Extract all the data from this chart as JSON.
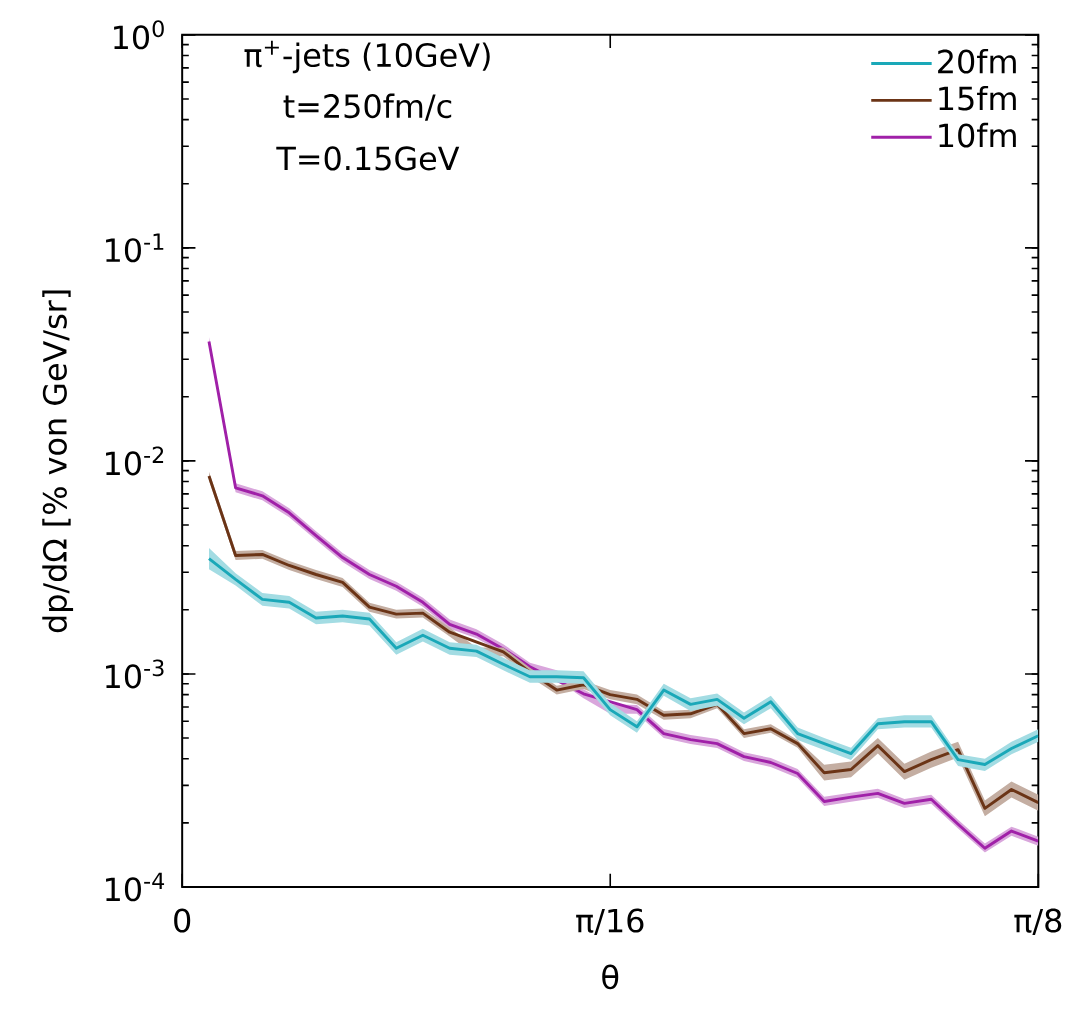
{
  "chart_data": {
    "type": "line",
    "xlabel": "θ",
    "ylabel": "dp/dΩ [% von GeV/sr]",
    "annotations": [
      "π$^{+}$-jets (10GeV)",
      "t=250fm/c",
      "T=0.15GeV"
    ],
    "log": "y",
    "legend": "top right",
    "xlim": [
      0,
      0.3927
    ],
    "xticks": [
      0,
      {
        "value": 0.19635,
        "label": "π/16"
      },
      {
        "value": 0.3927,
        "label": "π/8"
      }
    ],
    "ylim": [
      0.0001,
      1
    ],
    "yticks": [
      {
        "value": 0.0001,
        "label": "10$^{-4}$"
      },
      {
        "value": 0.001,
        "label": "10$^{-3}$"
      },
      {
        "value": 0.01,
        "label": "10$^{-2}$"
      },
      {
        "value": 0.1,
        "label": "10$^{-1}$"
      },
      {
        "value": 1,
        "label": "10$^{0}$"
      }
    ],
    "x": [
      0.0123,
      0.0245,
      0.0368,
      0.0491,
      0.0614,
      0.0736,
      0.0859,
      0.0982,
      0.1104,
      0.1227,
      0.135,
      0.1473,
      0.1595,
      0.1718,
      0.1841,
      0.1963,
      0.2086,
      0.2209,
      0.2332,
      0.2454,
      0.2577,
      0.27,
      0.2823,
      0.2945,
      0.3068,
      0.3191,
      0.3313,
      0.3436,
      0.3559,
      0.3682,
      0.3804,
      0.3927
    ],
    "series": [
      {
        "name": "20fm",
        "color": "#1aa8b8",
        "values": [
          0.00348,
          0.00278,
          0.00224,
          0.00217,
          0.00183,
          0.00187,
          0.00181,
          0.00132,
          0.00152,
          0.00132,
          0.00128,
          0.00111,
          0.00097,
          0.00097,
          0.00096,
          0.00068,
          0.000565,
          0.00084,
          0.00072,
          0.00076,
          0.00062,
          0.00074,
          0.000525,
          0.000471,
          0.000423,
          0.000584,
          0.000597,
          0.000597,
          0.000396,
          0.000376,
          0.000447,
          0.000513
        ],
        "lower": [
          0.0031,
          0.0026,
          0.00209,
          0.00203,
          0.00171,
          0.00175,
          0.00169,
          0.00123,
          0.00142,
          0.00123,
          0.0012,
          0.00104,
          0.00091,
          0.00091,
          0.0009,
          0.00064,
          0.00053,
          0.00079,
          0.00067,
          0.00071,
          0.00058,
          0.00069,
          0.00049,
          0.00044,
          0.000395,
          0.00055,
          0.00056,
          0.00056,
          0.00037,
          0.00035,
          0.00042,
          0.00048
        ],
        "upper": [
          0.0039,
          0.00297,
          0.0024,
          0.00232,
          0.00196,
          0.002,
          0.00194,
          0.00141,
          0.00163,
          0.00141,
          0.00137,
          0.00119,
          0.00104,
          0.00104,
          0.00103,
          0.00073,
          0.0006,
          0.0009,
          0.00077,
          0.00081,
          0.00066,
          0.00079,
          0.00056,
          0.0005,
          0.00045,
          0.00062,
          0.00064,
          0.00064,
          0.00042,
          0.0004,
          0.00048,
          0.00055
        ]
      },
      {
        "name": "15fm",
        "color": "#6b3416",
        "values": [
          0.0085,
          0.0036,
          0.00364,
          0.00323,
          0.00293,
          0.00269,
          0.00206,
          0.00191,
          0.00193,
          0.00157,
          null,
          0.00127,
          0.00102,
          0.00084,
          0.00089,
          0.0008,
          0.00076,
          0.00064,
          0.00065,
          0.00072,
          0.000525,
          0.000553,
          0.000471,
          0.000344,
          0.000356,
          0.000461,
          0.000348,
          0.000396,
          0.000441,
          0.000234,
          0.000287,
          0.000249
        ],
        "lower": [
          0.0081,
          0.00343,
          0.00347,
          0.00308,
          0.00279,
          0.00256,
          0.00196,
          0.00182,
          0.00184,
          0.0015,
          0.00121,
          0.00121,
          0.00097,
          0.0008,
          0.00085,
          0.00076,
          0.00072,
          0.00061,
          0.00062,
          0.00069,
          0.0005,
          0.00053,
          0.00045,
          0.000316,
          0.000327,
          0.000423,
          0.000319,
          0.000363,
          0.000405,
          0.000215,
          0.000263,
          0.000228
        ],
        "upper": [
          0.0089,
          0.00378,
          0.00382,
          0.00339,
          0.00308,
          0.00282,
          0.00216,
          0.002,
          0.00203,
          0.00165,
          0.00133,
          0.00133,
          0.00107,
          0.00088,
          0.00093,
          0.00084,
          0.0008,
          0.00067,
          0.00068,
          0.00076,
          0.00055,
          0.00058,
          0.00049,
          0.000375,
          0.000388,
          0.0005,
          0.000379,
          0.000432,
          0.000481,
          0.000255,
          0.000313,
          0.000271
        ]
      },
      {
        "name": "10fm",
        "color": "#a020a8",
        "values": [
          0.0364,
          0.00748,
          0.00686,
          0.00571,
          0.00446,
          0.00352,
          0.00293,
          0.00258,
          0.00217,
          0.00171,
          0.00154,
          0.00131,
          0.00108,
          null,
          0.000807,
          null,
          0.00068,
          0.000525,
          0.000492,
          0.000471,
          0.000409,
          0.000384,
          0.000341,
          0.000252,
          0.000264,
          0.000275,
          0.000247,
          0.000258,
          0.000197,
          0.000152,
          0.000183,
          0.000164
        ],
        "lower": [
          0.0347,
          0.00712,
          0.00653,
          0.00544,
          0.00425,
          0.00335,
          0.00279,
          0.00246,
          0.00207,
          0.00163,
          0.00147,
          0.00125,
          0.00103,
          0.00094,
          0.00077,
          0.00065,
          0.00065,
          0.0005,
          0.000469,
          0.000449,
          0.00039,
          0.000366,
          0.000325,
          0.00024,
          0.000251,
          0.000262,
          0.000235,
          0.000246,
          0.000188,
          0.000145,
          0.000174,
          0.000156
        ],
        "upper": [
          0.0382,
          0.00785,
          0.0072,
          0.006,
          0.00468,
          0.0037,
          0.00308,
          0.00271,
          0.00228,
          0.0018,
          0.00162,
          0.00138,
          0.00113,
          0.00104,
          0.000847,
          0.00072,
          0.000714,
          0.000551,
          0.000517,
          0.000495,
          0.000429,
          0.000403,
          0.000358,
          0.000265,
          0.000277,
          0.000289,
          0.000259,
          0.000271,
          0.000207,
          0.00016,
          0.000192,
          0.000172
        ]
      }
    ]
  }
}
